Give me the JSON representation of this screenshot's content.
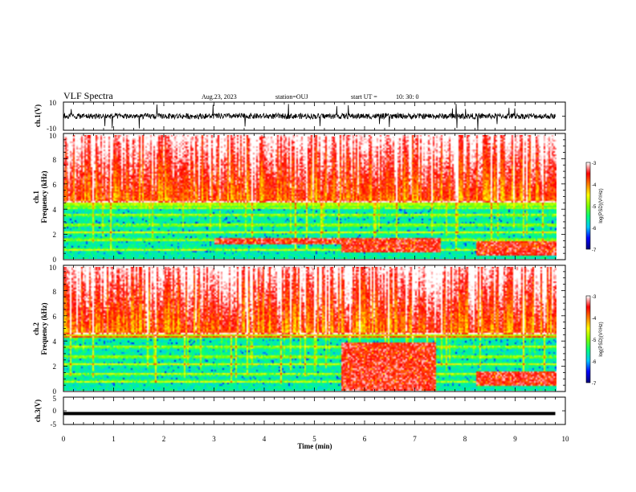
{
  "header": {
    "title": "VLF Spectra",
    "date": "Aug.23, 2023",
    "station": "station=OUJ",
    "start_label": "start  UT  =",
    "start_time": "10: 30: 0"
  },
  "colors": {
    "colormap": [
      "#000080",
      "#0000ff",
      "#00c8ff",
      "#00ff80",
      "#80ff00",
      "#ffff00",
      "#ff8000",
      "#ff0000",
      "#ffffff"
    ],
    "trace": "#000000",
    "axes": "#000000"
  },
  "chart_data": [
    {
      "type": "line",
      "name": "ch1-waveform",
      "ylabel": "ch.1(V)",
      "ylim": [
        -10,
        10
      ],
      "y_ticks": [
        "10",
        "-10"
      ],
      "xlim": [
        0,
        10
      ],
      "baseline": 0,
      "amplitude_typical": 2,
      "amplitude_spikes": 10
    },
    {
      "type": "heatmap",
      "name": "ch1-spectrogram",
      "ylabel": "Frequency (kHz)",
      "channel_label": "ch.1",
      "ylim": [
        0,
        10
      ],
      "y_ticks": [
        "0",
        "2",
        "4",
        "6",
        "8",
        "10"
      ],
      "xlim": [
        0,
        10
      ],
      "data_end_min": 9.8,
      "colorbar": {
        "label": "log(PSD)(V²/Hz)",
        "range": [
          -7,
          -3
        ],
        "ticks": [
          "-3",
          "-4",
          "-5",
          "-6",
          "-7"
        ]
      },
      "dominant_bands_khz": [
        0.8,
        1.6,
        2.2,
        2.8,
        3.6,
        4.2
      ],
      "intense_regions": [
        {
          "t_start": 3.0,
          "t_end": 5.5,
          "f_low": 1.2,
          "f_high": 1.8
        },
        {
          "t_start": 5.5,
          "t_end": 7.5,
          "f_low": 0.6,
          "f_high": 1.8
        },
        {
          "t_start": 8.2,
          "t_end": 9.8,
          "f_low": 0.3,
          "f_high": 1.5
        }
      ]
    },
    {
      "type": "heatmap",
      "name": "ch2-spectrogram",
      "ylabel": "Frequency (kHz)",
      "channel_label": "ch.2",
      "ylim": [
        0,
        10
      ],
      "y_ticks": [
        "0",
        "2",
        "4",
        "6",
        "8",
        "10"
      ],
      "xlim": [
        0,
        10
      ],
      "data_end_min": 9.8,
      "colorbar": {
        "label": "log(PSD)(V²/Hz)",
        "range": [
          -7,
          -3
        ],
        "ticks": [
          "-3",
          "-4",
          "-5",
          "-6",
          "-7"
        ]
      },
      "dominant_bands_khz": [
        0.8,
        1.4,
        2.2,
        2.8,
        3.6,
        4.4
      ],
      "intense_regions": [
        {
          "t_start": 5.5,
          "t_end": 7.4,
          "f_low": 0.0,
          "f_high": 4.0
        },
        {
          "t_start": 8.2,
          "t_end": 9.8,
          "f_low": 0.5,
          "f_high": 1.6
        }
      ]
    },
    {
      "type": "line",
      "name": "ch3-waveform",
      "ylabel": "ch.3(V)",
      "ylim": [
        -5,
        5
      ],
      "y_ticks": [
        "5",
        "0",
        "-5"
      ],
      "xlim": [
        0,
        10
      ],
      "baseline": -1,
      "xlabel": "Time (min)",
      "x_ticks": [
        "0",
        "1",
        "2",
        "3",
        "4",
        "5",
        "6",
        "7",
        "8",
        "9",
        "10"
      ]
    }
  ]
}
